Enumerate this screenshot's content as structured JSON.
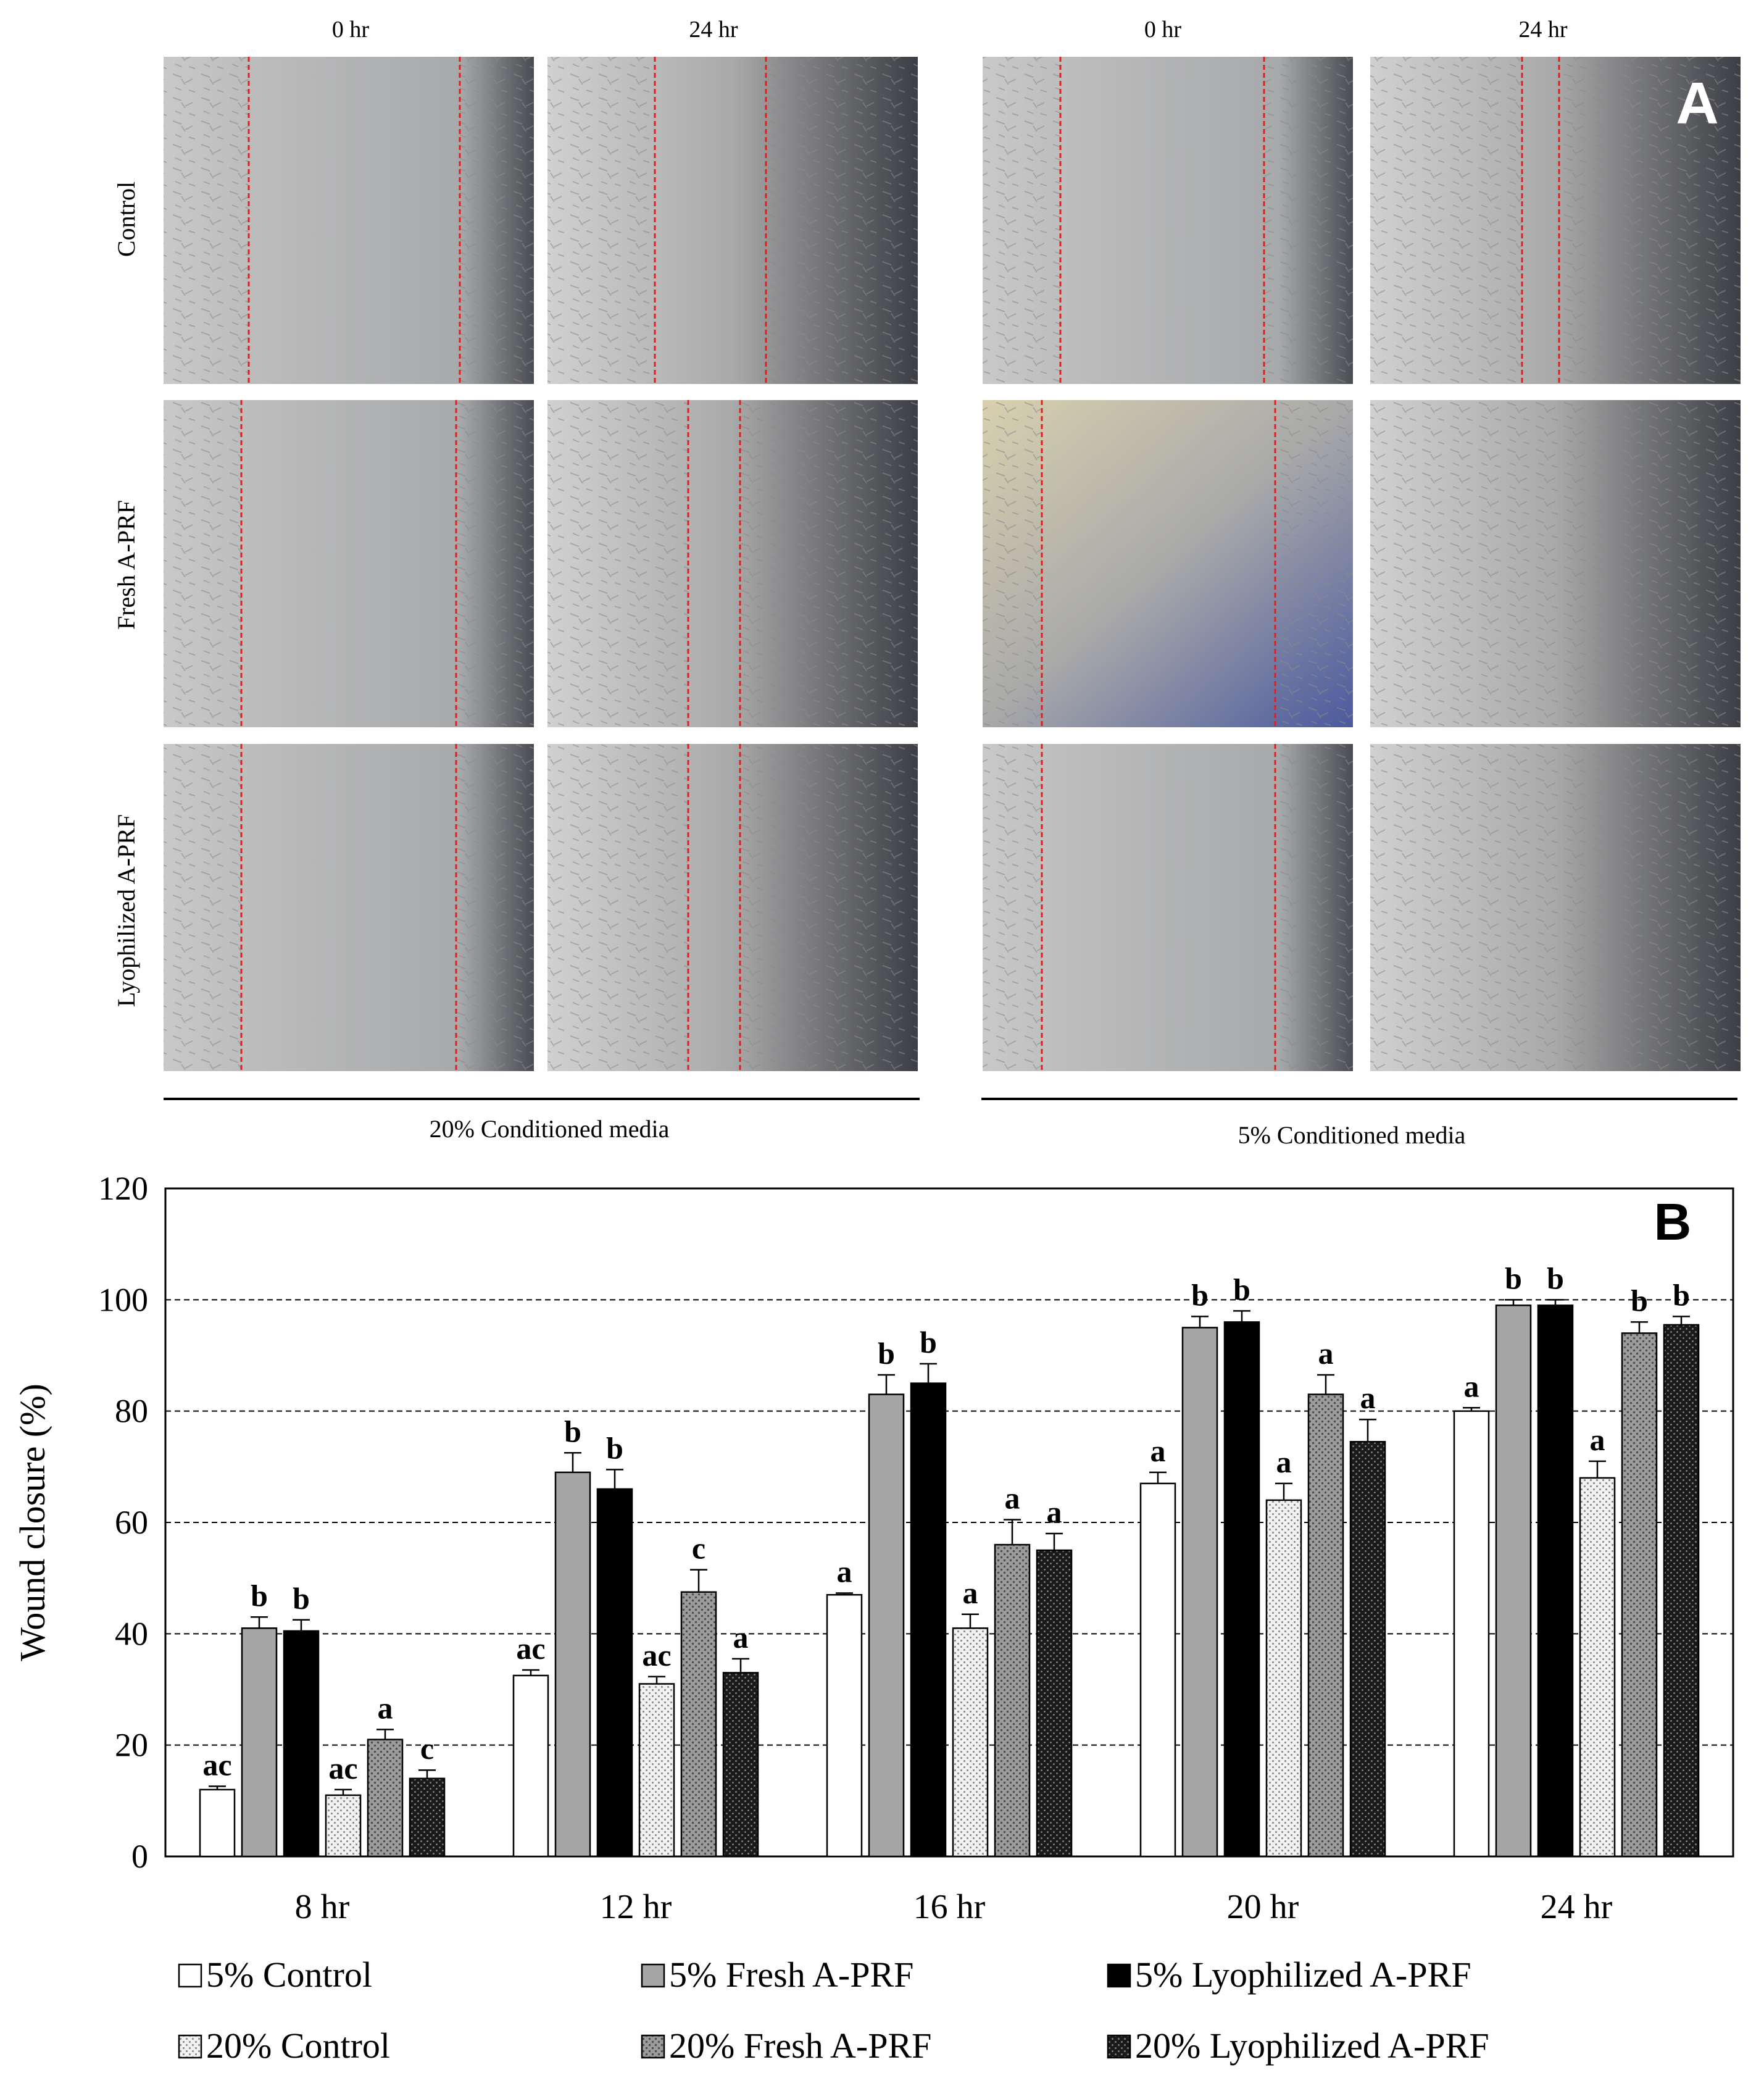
{
  "panel_a": {
    "label": "A",
    "groups": [
      {
        "caption": "20% Conditioned media",
        "columns": [
          "0 hr",
          "24 hr"
        ]
      },
      {
        "caption": "5% Conditioned media",
        "columns": [
          "0 hr",
          "24 hr"
        ]
      }
    ],
    "rows": [
      "Control",
      "Fresh A-PRF",
      "Lyophilized A-PRF"
    ]
  },
  "chart_data": {
    "type": "bar",
    "panel_label": "B",
    "title": "",
    "xlabel": "",
    "ylabel": "Wound closure (%)",
    "ylim": [
      0,
      120
    ],
    "yticks": [
      0,
      20,
      40,
      60,
      80,
      100,
      120
    ],
    "grid": "dashed horizontal at 20, 40, 60, 80, 100",
    "categories": [
      "8 hr",
      "12 hr",
      "16 hr",
      "20 hr",
      "24 hr"
    ],
    "series": [
      {
        "name": "5% Control",
        "color": "#ffffff",
        "pattern": "solid-white",
        "values": [
          12,
          32.5,
          47,
          67,
          80
        ],
        "errors": [
          0.6,
          1,
          0.3,
          2,
          0.6
        ],
        "labels": [
          "ac",
          "ac",
          "a",
          "a",
          "a"
        ]
      },
      {
        "name": "5% Fresh A-PRF",
        "color": "#a6a6a6",
        "pattern": "solid-gray",
        "values": [
          41,
          69,
          83,
          95,
          99
        ],
        "errors": [
          2,
          3.5,
          3.5,
          2,
          1
        ],
        "labels": [
          "b",
          "b",
          "b",
          "b",
          "b"
        ]
      },
      {
        "name": "5% Lyophilized A-PRF",
        "color": "#000000",
        "pattern": "solid-black",
        "values": [
          40.5,
          66,
          85,
          96,
          99
        ],
        "errors": [
          2,
          3.5,
          3.5,
          2,
          1
        ],
        "labels": [
          "b",
          "b",
          "b",
          "b",
          "b"
        ]
      },
      {
        "name": "20% Control",
        "color": "#e6e6e6",
        "pattern": "light-dots",
        "values": [
          11,
          31,
          41,
          64,
          68
        ],
        "errors": [
          1,
          1.3,
          2.5,
          3,
          3
        ],
        "labels": [
          "ac",
          "ac",
          "a",
          "a",
          "a"
        ]
      },
      {
        "name": "20% Fresh A-PRF",
        "color": "#8c8c8c",
        "pattern": "gray-dots",
        "values": [
          21,
          47.5,
          56,
          83,
          94
        ],
        "errors": [
          1.8,
          4,
          4.5,
          3.5,
          2
        ],
        "labels": [
          "a",
          "c",
          "a",
          "a",
          "b"
        ]
      },
      {
        "name": "20% Lyophilized A-PRF",
        "color": "#2b2b2b",
        "pattern": "dark-dots",
        "values": [
          14,
          33,
          55,
          74.5,
          95.5
        ],
        "errors": [
          1.5,
          2.5,
          3,
          4,
          1.5
        ],
        "labels": [
          "c",
          "a",
          "a",
          "a",
          "b"
        ]
      }
    ]
  }
}
